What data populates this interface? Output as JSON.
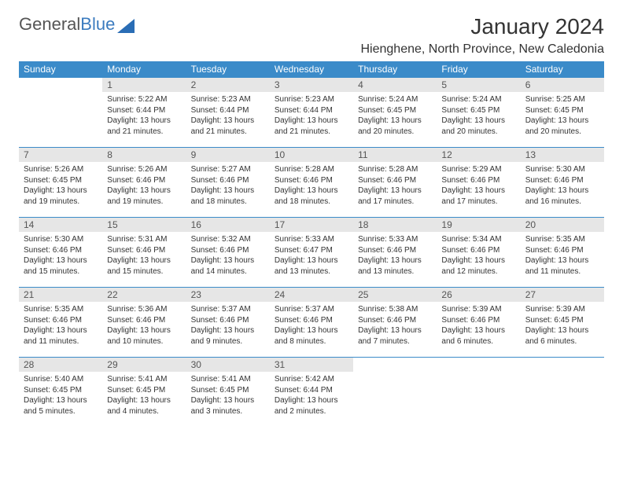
{
  "brand": {
    "text1": "General",
    "text2": "Blue"
  },
  "title": "January 2024",
  "location": "Hienghene, North Province, New Caledonia",
  "headers": [
    "Sunday",
    "Monday",
    "Tuesday",
    "Wednesday",
    "Thursday",
    "Friday",
    "Saturday"
  ],
  "colors": {
    "header_bg": "#3b8bc9",
    "header_fg": "#ffffff",
    "daynum_bg": "#e6e6e6",
    "border": "#3b8bc9",
    "logo_blue": "#3b7bbf",
    "logo_gray": "#555555"
  },
  "weeks": [
    [
      {
        "n": "",
        "lines": []
      },
      {
        "n": "1",
        "lines": [
          "Sunrise: 5:22 AM",
          "Sunset: 6:44 PM",
          "Daylight: 13 hours and 21 minutes."
        ]
      },
      {
        "n": "2",
        "lines": [
          "Sunrise: 5:23 AM",
          "Sunset: 6:44 PM",
          "Daylight: 13 hours and 21 minutes."
        ]
      },
      {
        "n": "3",
        "lines": [
          "Sunrise: 5:23 AM",
          "Sunset: 6:44 PM",
          "Daylight: 13 hours and 21 minutes."
        ]
      },
      {
        "n": "4",
        "lines": [
          "Sunrise: 5:24 AM",
          "Sunset: 6:45 PM",
          "Daylight: 13 hours and 20 minutes."
        ]
      },
      {
        "n": "5",
        "lines": [
          "Sunrise: 5:24 AM",
          "Sunset: 6:45 PM",
          "Daylight: 13 hours and 20 minutes."
        ]
      },
      {
        "n": "6",
        "lines": [
          "Sunrise: 5:25 AM",
          "Sunset: 6:45 PM",
          "Daylight: 13 hours and 20 minutes."
        ]
      }
    ],
    [
      {
        "n": "7",
        "lines": [
          "Sunrise: 5:26 AM",
          "Sunset: 6:45 PM",
          "Daylight: 13 hours and 19 minutes."
        ]
      },
      {
        "n": "8",
        "lines": [
          "Sunrise: 5:26 AM",
          "Sunset: 6:46 PM",
          "Daylight: 13 hours and 19 minutes."
        ]
      },
      {
        "n": "9",
        "lines": [
          "Sunrise: 5:27 AM",
          "Sunset: 6:46 PM",
          "Daylight: 13 hours and 18 minutes."
        ]
      },
      {
        "n": "10",
        "lines": [
          "Sunrise: 5:28 AM",
          "Sunset: 6:46 PM",
          "Daylight: 13 hours and 18 minutes."
        ]
      },
      {
        "n": "11",
        "lines": [
          "Sunrise: 5:28 AM",
          "Sunset: 6:46 PM",
          "Daylight: 13 hours and 17 minutes."
        ]
      },
      {
        "n": "12",
        "lines": [
          "Sunrise: 5:29 AM",
          "Sunset: 6:46 PM",
          "Daylight: 13 hours and 17 minutes."
        ]
      },
      {
        "n": "13",
        "lines": [
          "Sunrise: 5:30 AM",
          "Sunset: 6:46 PM",
          "Daylight: 13 hours and 16 minutes."
        ]
      }
    ],
    [
      {
        "n": "14",
        "lines": [
          "Sunrise: 5:30 AM",
          "Sunset: 6:46 PM",
          "Daylight: 13 hours and 15 minutes."
        ]
      },
      {
        "n": "15",
        "lines": [
          "Sunrise: 5:31 AM",
          "Sunset: 6:46 PM",
          "Daylight: 13 hours and 15 minutes."
        ]
      },
      {
        "n": "16",
        "lines": [
          "Sunrise: 5:32 AM",
          "Sunset: 6:46 PM",
          "Daylight: 13 hours and 14 minutes."
        ]
      },
      {
        "n": "17",
        "lines": [
          "Sunrise: 5:33 AM",
          "Sunset: 6:47 PM",
          "Daylight: 13 hours and 13 minutes."
        ]
      },
      {
        "n": "18",
        "lines": [
          "Sunrise: 5:33 AM",
          "Sunset: 6:46 PM",
          "Daylight: 13 hours and 13 minutes."
        ]
      },
      {
        "n": "19",
        "lines": [
          "Sunrise: 5:34 AM",
          "Sunset: 6:46 PM",
          "Daylight: 13 hours and 12 minutes."
        ]
      },
      {
        "n": "20",
        "lines": [
          "Sunrise: 5:35 AM",
          "Sunset: 6:46 PM",
          "Daylight: 13 hours and 11 minutes."
        ]
      }
    ],
    [
      {
        "n": "21",
        "lines": [
          "Sunrise: 5:35 AM",
          "Sunset: 6:46 PM",
          "Daylight: 13 hours and 11 minutes."
        ]
      },
      {
        "n": "22",
        "lines": [
          "Sunrise: 5:36 AM",
          "Sunset: 6:46 PM",
          "Daylight: 13 hours and 10 minutes."
        ]
      },
      {
        "n": "23",
        "lines": [
          "Sunrise: 5:37 AM",
          "Sunset: 6:46 PM",
          "Daylight: 13 hours and 9 minutes."
        ]
      },
      {
        "n": "24",
        "lines": [
          "Sunrise: 5:37 AM",
          "Sunset: 6:46 PM",
          "Daylight: 13 hours and 8 minutes."
        ]
      },
      {
        "n": "25",
        "lines": [
          "Sunrise: 5:38 AM",
          "Sunset: 6:46 PM",
          "Daylight: 13 hours and 7 minutes."
        ]
      },
      {
        "n": "26",
        "lines": [
          "Sunrise: 5:39 AM",
          "Sunset: 6:46 PM",
          "Daylight: 13 hours and 6 minutes."
        ]
      },
      {
        "n": "27",
        "lines": [
          "Sunrise: 5:39 AM",
          "Sunset: 6:45 PM",
          "Daylight: 13 hours and 6 minutes."
        ]
      }
    ],
    [
      {
        "n": "28",
        "lines": [
          "Sunrise: 5:40 AM",
          "Sunset: 6:45 PM",
          "Daylight: 13 hours and 5 minutes."
        ]
      },
      {
        "n": "29",
        "lines": [
          "Sunrise: 5:41 AM",
          "Sunset: 6:45 PM",
          "Daylight: 13 hours and 4 minutes."
        ]
      },
      {
        "n": "30",
        "lines": [
          "Sunrise: 5:41 AM",
          "Sunset: 6:45 PM",
          "Daylight: 13 hours and 3 minutes."
        ]
      },
      {
        "n": "31",
        "lines": [
          "Sunrise: 5:42 AM",
          "Sunset: 6:44 PM",
          "Daylight: 13 hours and 2 minutes."
        ]
      },
      {
        "n": "",
        "lines": []
      },
      {
        "n": "",
        "lines": []
      },
      {
        "n": "",
        "lines": []
      }
    ]
  ]
}
